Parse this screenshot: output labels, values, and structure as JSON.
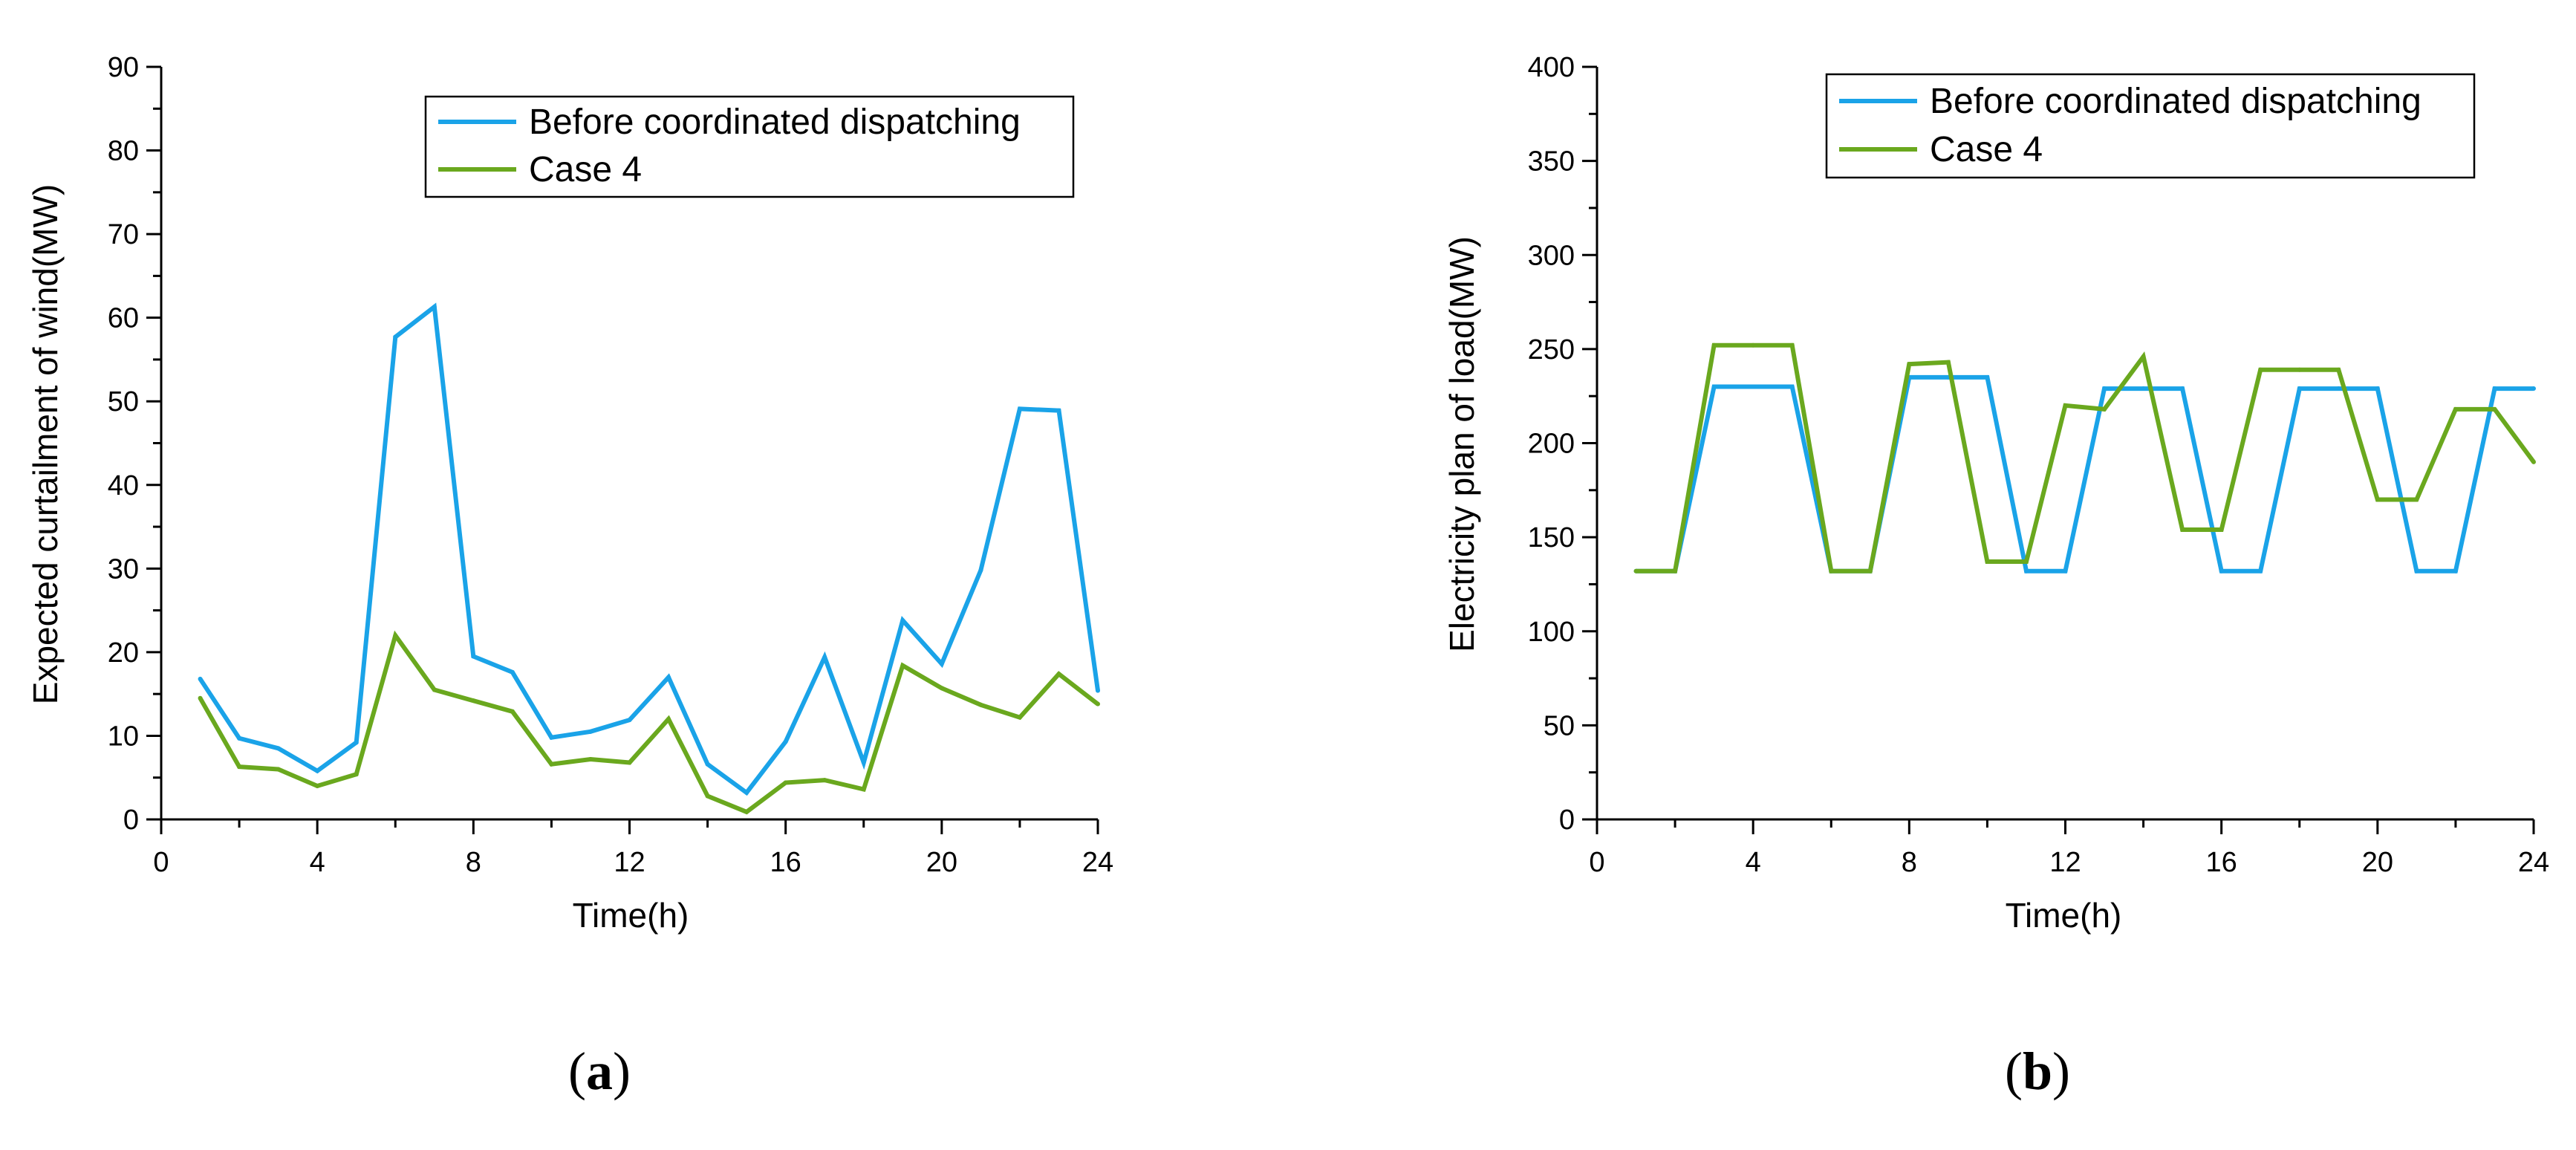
{
  "colors": {
    "before": "#1aa3e8",
    "case4": "#6aa81e",
    "axis": "#000000"
  },
  "chart_data": [
    {
      "type": "line",
      "panel": "a",
      "title": "",
      "xlabel": "Time(h)",
      "ylabel": "Expected curtailment of wind(MW)",
      "xlim": [
        0,
        24
      ],
      "ylim": [
        0,
        90
      ],
      "xticks": [
        0,
        4,
        8,
        12,
        16,
        20,
        24
      ],
      "yticks": [
        0,
        10,
        20,
        30,
        40,
        50,
        60,
        70,
        80,
        90
      ],
      "legend_position": "top-right",
      "x": [
        1,
        2,
        3,
        4,
        5,
        6,
        7,
        8,
        9,
        10,
        11,
        12,
        13,
        14,
        15,
        16,
        17,
        18,
        19,
        20,
        21,
        22,
        23,
        24
      ],
      "series": [
        {
          "name": "Before coordinated dispatching",
          "color_key": "before",
          "values": [
            16.8,
            9.7,
            8.5,
            5.8,
            9.2,
            57.7,
            61.3,
            19.5,
            17.6,
            9.8,
            10.5,
            11.9,
            17.0,
            6.6,
            3.2,
            9.3,
            19.4,
            6.8,
            23.8,
            18.6,
            29.8,
            49.1,
            48.9,
            15.4
          ]
        },
        {
          "name": "Case 4",
          "color_key": "case4",
          "values": [
            14.5,
            6.3,
            6.0,
            4.0,
            5.4,
            22.0,
            15.5,
            14.2,
            12.9,
            6.6,
            7.2,
            6.8,
            12.0,
            2.8,
            0.9,
            4.4,
            4.7,
            3.6,
            18.4,
            15.7,
            13.7,
            12.2,
            17.4,
            13.8
          ]
        }
      ]
    },
    {
      "type": "line",
      "panel": "b",
      "title": "",
      "xlabel": "Time(h)",
      "ylabel": "Electricity plan of load(MW)",
      "xlim": [
        0,
        24
      ],
      "ylim": [
        0,
        400
      ],
      "xticks": [
        0,
        4,
        8,
        12,
        16,
        20,
        24
      ],
      "yticks": [
        0,
        50,
        100,
        150,
        200,
        250,
        300,
        350,
        400
      ],
      "legend_position": "top-right",
      "x": [
        1,
        2,
        3,
        4,
        5,
        6,
        7,
        8,
        9,
        10,
        11,
        12,
        13,
        14,
        15,
        16,
        17,
        18,
        19,
        20,
        21,
        22,
        23,
        24
      ],
      "series": [
        {
          "name": "Before coordinated dispatching",
          "color_key": "before",
          "values": [
            132,
            132,
            230,
            230,
            230,
            132,
            132,
            235,
            235,
            235,
            132,
            132,
            229,
            229,
            229,
            132,
            132,
            229,
            229,
            229,
            132,
            132,
            229,
            229
          ]
        },
        {
          "name": "Case 4",
          "color_key": "case4",
          "values": [
            132,
            132,
            252,
            252,
            252,
            132,
            132,
            242,
            243,
            137,
            137,
            220,
            218,
            246,
            154,
            154,
            239,
            239,
            239,
            170,
            170,
            218,
            218,
            190
          ]
        }
      ]
    }
  ],
  "panel_labels": {
    "a": {
      "open": "(",
      "letter": "a",
      "close": ")"
    },
    "b": {
      "open": "(",
      "letter": "b",
      "close": ")"
    }
  }
}
